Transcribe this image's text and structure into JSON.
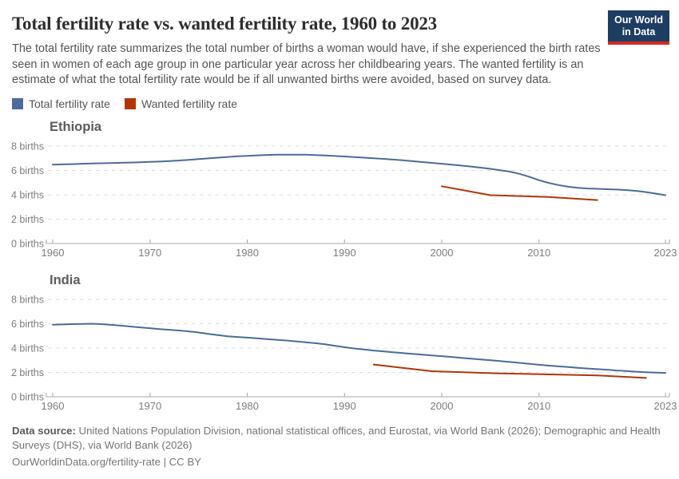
{
  "header": {
    "title": "Total fertility rate vs. wanted fertility rate, 1960 to 2023",
    "subtitle": "The total fertility rate summarizes the total number of births a woman would have, if she experienced the birth rates seen in women of each age group in one particular year across her childbearing years. The wanted fertility is an estimate of what the total fertility rate would be if all unwanted births were avoided, based on survey data.",
    "logo": {
      "line1": "Our World",
      "line2": "in Data",
      "bg_color": "#1d3d63",
      "accent_color": "#d42b21"
    }
  },
  "legend": [
    {
      "label": "Total fertility rate",
      "color": "#4C6A9C"
    },
    {
      "label": "Wanted fertility rate",
      "color": "#B13507"
    }
  ],
  "chart_data": [
    {
      "type": "line",
      "title": "Ethiopia",
      "xlabel": "",
      "ylabel": "births",
      "xlim": [
        1960,
        2023
      ],
      "ylim": [
        0,
        8
      ],
      "x_ticks": [
        1960,
        1970,
        1980,
        1990,
        2000,
        2010,
        2023
      ],
      "y_ticks": [
        0,
        2,
        4,
        6,
        8
      ],
      "y_tick_suffix": " births",
      "grid": "dashed-horizontal",
      "series": [
        {
          "name": "Total fertility rate",
          "color": "#4C6A9C",
          "x": [
            1960,
            1961,
            1962,
            1963,
            1964,
            1965,
            1966,
            1967,
            1968,
            1969,
            1970,
            1971,
            1972,
            1973,
            1974,
            1975,
            1976,
            1977,
            1978,
            1979,
            1980,
            1981,
            1982,
            1983,
            1984,
            1985,
            1986,
            1987,
            1988,
            1989,
            1990,
            1991,
            1992,
            1993,
            1994,
            1995,
            1996,
            1997,
            1998,
            1999,
            2000,
            2001,
            2002,
            2003,
            2004,
            2005,
            2006,
            2007,
            2008,
            2009,
            2010,
            2011,
            2012,
            2013,
            2014,
            2015,
            2016,
            2017,
            2018,
            2019,
            2020,
            2021,
            2022,
            2023
          ],
          "values": [
            6.48,
            6.5,
            6.52,
            6.55,
            6.57,
            6.59,
            6.61,
            6.63,
            6.65,
            6.67,
            6.7,
            6.73,
            6.77,
            6.82,
            6.87,
            6.93,
            6.99,
            7.05,
            7.11,
            7.16,
            7.2,
            7.24,
            7.27,
            7.29,
            7.3,
            7.3,
            7.29,
            7.26,
            7.23,
            7.19,
            7.15,
            7.1,
            7.05,
            7.0,
            6.95,
            6.89,
            6.83,
            6.76,
            6.69,
            6.62,
            6.55,
            6.48,
            6.4,
            6.32,
            6.23,
            6.13,
            6.02,
            5.9,
            5.72,
            5.48,
            5.2,
            4.98,
            4.8,
            4.66,
            4.57,
            4.52,
            4.49,
            4.46,
            4.43,
            4.39,
            4.32,
            4.22,
            4.1,
            3.97
          ]
        },
        {
          "name": "Wanted fertility rate",
          "color": "#B13507",
          "x": [
            2000,
            2005,
            2011,
            2016
          ],
          "values": [
            4.7,
            3.97,
            3.82,
            3.57
          ]
        }
      ]
    },
    {
      "type": "line",
      "title": "India",
      "xlabel": "",
      "ylabel": "births",
      "xlim": [
        1960,
        2023
      ],
      "ylim": [
        0,
        8
      ],
      "x_ticks": [
        1960,
        1970,
        1980,
        1990,
        2000,
        2010,
        2023
      ],
      "y_ticks": [
        0,
        2,
        4,
        6,
        8
      ],
      "y_tick_suffix": " births",
      "grid": "dashed-horizontal",
      "series": [
        {
          "name": "Total fertility rate",
          "color": "#4C6A9C",
          "x": [
            1960,
            1961,
            1962,
            1963,
            1964,
            1965,
            1966,
            1967,
            1968,
            1969,
            1970,
            1971,
            1972,
            1973,
            1974,
            1975,
            1976,
            1977,
            1978,
            1979,
            1980,
            1981,
            1982,
            1983,
            1984,
            1985,
            1986,
            1987,
            1988,
            1989,
            1990,
            1991,
            1992,
            1993,
            1994,
            1995,
            1996,
            1997,
            1998,
            1999,
            2000,
            2001,
            2002,
            2003,
            2004,
            2005,
            2006,
            2007,
            2008,
            2009,
            2010,
            2011,
            2012,
            2013,
            2014,
            2015,
            2016,
            2017,
            2018,
            2019,
            2020,
            2021,
            2022,
            2023
          ],
          "values": [
            5.92,
            5.94,
            5.97,
            5.99,
            6.0,
            5.97,
            5.91,
            5.84,
            5.77,
            5.7,
            5.63,
            5.56,
            5.5,
            5.44,
            5.37,
            5.28,
            5.17,
            5.06,
            4.97,
            4.91,
            4.86,
            4.8,
            4.74,
            4.68,
            4.62,
            4.55,
            4.48,
            4.4,
            4.31,
            4.19,
            4.07,
            3.97,
            3.88,
            3.8,
            3.73,
            3.66,
            3.59,
            3.52,
            3.46,
            3.4,
            3.34,
            3.27,
            3.2,
            3.13,
            3.07,
            3.0,
            2.93,
            2.86,
            2.79,
            2.71,
            2.63,
            2.56,
            2.5,
            2.44,
            2.38,
            2.32,
            2.27,
            2.22,
            2.16,
            2.11,
            2.06,
            2.02,
            1.99,
            1.96
          ]
        },
        {
          "name": "Wanted fertility rate",
          "color": "#B13507",
          "x": [
            1993,
            1999,
            2006,
            2016,
            2021
          ],
          "values": [
            2.65,
            2.1,
            1.92,
            1.76,
            1.55
          ]
        }
      ]
    }
  ],
  "footer": {
    "source_label": "Data source:",
    "source_text": " United Nations Population Division, national statistical offices, and Eurostat, via World Bank (2026); Demographic and Health Surveys (DHS), via World Bank (2026)",
    "link_text": "OurWorldinData.org/fertility-rate | CC BY"
  }
}
